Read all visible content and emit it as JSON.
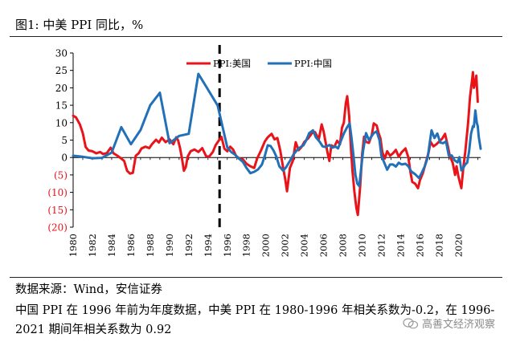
{
  "header": {
    "title": "图1:  中美 PPI 同比，%"
  },
  "footer": {
    "source": "数据来源：Wind，安信证券",
    "note_line1": "中国 PPI 在 1996 年前为年度数据，中美 PPI 在 1980-1996 年相关系数为-0.2，在 1996-",
    "note_line2": "2021 期间年相关系数为 0.92",
    "watermark": "高善文经济观察"
  },
  "colors": {
    "us": "#e8141a",
    "china": "#2270b8",
    "axis": "#000000",
    "negative_tick": "#e8141a"
  },
  "chart_data": {
    "type": "line",
    "title": "",
    "xlabel": "",
    "ylabel": "",
    "xlim": [
      1980,
      2022.3
    ],
    "ylim": [
      -20,
      30
    ],
    "y_ticks": [
      30,
      25,
      20,
      15,
      10,
      5,
      0,
      -5,
      -10,
      -15,
      -20
    ],
    "y_tick_labels": [
      "30",
      "25",
      "20",
      "15",
      "10",
      "5",
      "0",
      "(5)",
      "(10)",
      "(15)",
      "(20)"
    ],
    "x_ticks": [
      1980,
      1982,
      1984,
      1986,
      1988,
      1990,
      1992,
      1994,
      1996,
      1998,
      2000,
      2002,
      2004,
      2006,
      2008,
      2010,
      2012,
      2014,
      2016,
      2018,
      2020
    ],
    "x_tick_labels": [
      "1980",
      "1982",
      "1984",
      "1986",
      "1988",
      "1990",
      "1992",
      "1994",
      "1996",
      "1998",
      "2000",
      "2002",
      "2004",
      "2006",
      "2008",
      "2010",
      "2012",
      "2014",
      "2016",
      "2018",
      "2020"
    ],
    "vline": {
      "x": 1995.2,
      "style": "dashed"
    },
    "legend": {
      "placement": "top-center"
    },
    "series": [
      {
        "name": "PPI:美国",
        "points": [
          [
            1980.0,
            12
          ],
          [
            1980.3,
            11.5
          ],
          [
            1980.7,
            9.5
          ],
          [
            1981.0,
            7
          ],
          [
            1981.3,
            3
          ],
          [
            1981.6,
            2
          ],
          [
            1982.0,
            1.8
          ],
          [
            1982.4,
            1.2
          ],
          [
            1982.8,
            1.6
          ],
          [
            1983.1,
            1
          ],
          [
            1983.5,
            1.3
          ],
          [
            1983.9,
            2.8
          ],
          [
            1984.2,
            1.2
          ],
          [
            1984.6,
            0.5
          ],
          [
            1985.0,
            -0.3
          ],
          [
            1985.3,
            -1
          ],
          [
            1985.6,
            -3.8
          ],
          [
            1985.9,
            -4.6
          ],
          [
            1986.2,
            -4.4
          ],
          [
            1986.5,
            0.5
          ],
          [
            1986.8,
            1.2
          ],
          [
            1987.1,
            2.6
          ],
          [
            1987.5,
            3.1
          ],
          [
            1987.9,
            2.7
          ],
          [
            1988.2,
            3.9
          ],
          [
            1988.6,
            5.1
          ],
          [
            1988.9,
            4.3
          ],
          [
            1989.2,
            5.7
          ],
          [
            1989.6,
            4.4
          ],
          [
            1990.0,
            5.2
          ],
          [
            1990.4,
            3.8
          ],
          [
            1990.7,
            5.8
          ],
          [
            1990.9,
            4.9
          ],
          [
            1991.1,
            2.7
          ],
          [
            1991.3,
            -0.3
          ],
          [
            1991.5,
            -3.8
          ],
          [
            1991.7,
            -2.7
          ],
          [
            1991.9,
            0.3
          ],
          [
            1992.2,
            1.8
          ],
          [
            1992.6,
            2.3
          ],
          [
            1993.0,
            1.6
          ],
          [
            1993.4,
            2.7
          ],
          [
            1993.8,
            0.4
          ],
          [
            1994.1,
            0.2
          ],
          [
            1994.5,
            1.6
          ],
          [
            1994.8,
            3.6
          ],
          [
            1995.1,
            4.8
          ],
          [
            1995.4,
            5.9
          ],
          [
            1995.7,
            2.5
          ],
          [
            1996.0,
            1.8
          ],
          [
            1996.3,
            3.1
          ],
          [
            1996.6,
            2.3
          ],
          [
            1996.9,
            0.5
          ],
          [
            1997.2,
            -0.2
          ],
          [
            1997.6,
            -0.5
          ],
          [
            1998.0,
            -1.8
          ],
          [
            1998.4,
            -2.5
          ],
          [
            1998.8,
            -3
          ],
          [
            1999.1,
            -0.3
          ],
          [
            1999.5,
            2
          ],
          [
            1999.9,
            4.6
          ],
          [
            2000.2,
            5.8
          ],
          [
            2000.6,
            6.8
          ],
          [
            2000.9,
            5.2
          ],
          [
            2001.2,
            5.6
          ],
          [
            2001.5,
            2
          ],
          [
            2001.8,
            -3
          ],
          [
            2002.0,
            -6
          ],
          [
            2002.2,
            -9.7
          ],
          [
            2002.5,
            -3
          ],
          [
            2002.8,
            -1
          ],
          [
            2003.1,
            4.4
          ],
          [
            2003.4,
            2.1
          ],
          [
            2003.7,
            3
          ],
          [
            2004.0,
            4.5
          ],
          [
            2004.4,
            5.5
          ],
          [
            2004.8,
            7
          ],
          [
            2005.1,
            7.3
          ],
          [
            2005.5,
            5.2
          ],
          [
            2005.8,
            9.5
          ],
          [
            2006.0,
            7.5
          ],
          [
            2006.2,
            4.5
          ],
          [
            2006.4,
            1.5
          ],
          [
            2006.6,
            -1
          ],
          [
            2006.8,
            3.5
          ],
          [
            2007.1,
            3
          ],
          [
            2007.4,
            4.8
          ],
          [
            2007.7,
            3.8
          ],
          [
            2007.9,
            8.5
          ],
          [
            2008.1,
            10
          ],
          [
            2008.3,
            15.5
          ],
          [
            2008.45,
            17.6
          ],
          [
            2008.65,
            12
          ],
          [
            2008.85,
            2
          ],
          [
            2009.0,
            -4
          ],
          [
            2009.2,
            -10
          ],
          [
            2009.4,
            -14.5
          ],
          [
            2009.55,
            -16.5
          ],
          [
            2009.8,
            -8
          ],
          [
            2010.0,
            1
          ],
          [
            2010.2,
            6
          ],
          [
            2010.4,
            4.5
          ],
          [
            2010.7,
            4.2
          ],
          [
            2011.0,
            6.5
          ],
          [
            2011.2,
            9.8
          ],
          [
            2011.5,
            9.2
          ],
          [
            2011.7,
            7
          ],
          [
            2011.9,
            5.5
          ],
          [
            2012.1,
            1.5
          ],
          [
            2012.35,
            -0.3
          ],
          [
            2012.6,
            1.8
          ],
          [
            2012.9,
            0.5
          ],
          [
            2013.2,
            1.2
          ],
          [
            2013.5,
            2.2
          ],
          [
            2013.8,
            0.2
          ],
          [
            2014.1,
            1.5
          ],
          [
            2014.5,
            2.6
          ],
          [
            2014.8,
            0
          ],
          [
            2015.0,
            -4
          ],
          [
            2015.2,
            -7
          ],
          [
            2015.5,
            -7.5
          ],
          [
            2015.8,
            -8.8
          ],
          [
            2016.0,
            -6.5
          ],
          [
            2016.3,
            -4.5
          ],
          [
            2016.6,
            -1.5
          ],
          [
            2016.9,
            1.5
          ],
          [
            2017.1,
            4.5
          ],
          [
            2017.4,
            3.2
          ],
          [
            2017.7,
            3.8
          ],
          [
            2018.0,
            4.6
          ],
          [
            2018.3,
            5.4
          ],
          [
            2018.6,
            6.8
          ],
          [
            2018.9,
            3.2
          ],
          [
            2019.1,
            0.5
          ],
          [
            2019.4,
            -1.5
          ],
          [
            2019.65,
            -5
          ],
          [
            2019.8,
            -2.5
          ],
          [
            2020.0,
            -5.5
          ],
          [
            2020.3,
            -8.8
          ],
          [
            2020.5,
            -3
          ],
          [
            2020.7,
            1.5
          ],
          [
            2021.0,
            10
          ],
          [
            2021.2,
            17.5
          ],
          [
            2021.4,
            22
          ],
          [
            2021.5,
            24.5
          ],
          [
            2021.6,
            20
          ],
          [
            2021.75,
            21.5
          ],
          [
            2021.85,
            23.5
          ],
          [
            2022.0,
            16
          ]
        ]
      },
      {
        "name": "PPI:中国",
        "points": [
          [
            1980.0,
            0.5
          ],
          [
            1981.0,
            0.2
          ],
          [
            1982.0,
            -0.2
          ],
          [
            1983.0,
            -0.1
          ],
          [
            1984.0,
            1.4
          ],
          [
            1985.0,
            8.7
          ],
          [
            1986.0,
            3.8
          ],
          [
            1987.0,
            7.9
          ],
          [
            1988.0,
            15.0
          ],
          [
            1989.0,
            18.6
          ],
          [
            1990.0,
            4.1
          ],
          [
            1991.0,
            6.2
          ],
          [
            1992.0,
            6.8
          ],
          [
            1993.0,
            24.0
          ],
          [
            1994.0,
            19.5
          ],
          [
            1995.0,
            14.9
          ],
          [
            1996.0,
            2.9
          ],
          [
            1996.4,
            1.6
          ],
          [
            1996.8,
            0.8
          ],
          [
            1997.2,
            -0.3
          ],
          [
            1997.6,
            -1.2
          ],
          [
            1998.0,
            -3
          ],
          [
            1998.4,
            -4.5
          ],
          [
            1998.8,
            -4.1
          ],
          [
            1999.2,
            -3.4
          ],
          [
            1999.6,
            -2
          ],
          [
            1999.9,
            0.5
          ],
          [
            2000.2,
            3.5
          ],
          [
            2000.5,
            3.3
          ],
          [
            2000.8,
            2
          ],
          [
            2001.1,
            0.2
          ],
          [
            2001.4,
            -2.5
          ],
          [
            2001.8,
            -3.8
          ],
          [
            2002.1,
            -2.8
          ],
          [
            2002.5,
            -1
          ],
          [
            2002.9,
            1
          ],
          [
            2003.2,
            2
          ],
          [
            2003.5,
            2.8
          ],
          [
            2003.9,
            3.5
          ],
          [
            2004.2,
            5
          ],
          [
            2004.5,
            7
          ],
          [
            2004.9,
            7.8
          ],
          [
            2005.2,
            5.8
          ],
          [
            2005.6,
            4.5
          ],
          [
            2005.9,
            3.2
          ],
          [
            2006.2,
            3
          ],
          [
            2006.6,
            3.6
          ],
          [
            2006.9,
            2.8
          ],
          [
            2007.2,
            3.2
          ],
          [
            2007.5,
            2.6
          ],
          [
            2007.8,
            4.8
          ],
          [
            2008.1,
            6.9
          ],
          [
            2008.4,
            8.5
          ],
          [
            2008.7,
            9.8
          ],
          [
            2008.9,
            5.5
          ],
          [
            2009.1,
            0.5
          ],
          [
            2009.3,
            -5
          ],
          [
            2009.5,
            -7.5
          ],
          [
            2009.7,
            -8.2
          ],
          [
            2009.9,
            -3
          ],
          [
            2010.1,
            2
          ],
          [
            2010.4,
            7
          ],
          [
            2010.7,
            5
          ],
          [
            2010.9,
            5.8
          ],
          [
            2011.2,
            7
          ],
          [
            2011.5,
            7.5
          ],
          [
            2011.8,
            5
          ],
          [
            2012.0,
            0.5
          ],
          [
            2012.3,
            -1.5
          ],
          [
            2012.6,
            -3.5
          ],
          [
            2012.9,
            -2
          ],
          [
            2013.2,
            -2
          ],
          [
            2013.5,
            -2.6
          ],
          [
            2013.8,
            -1.5
          ],
          [
            2014.1,
            -2
          ],
          [
            2014.5,
            -1.8
          ],
          [
            2014.8,
            -2.5
          ],
          [
            2015.1,
            -4
          ],
          [
            2015.5,
            -4.8
          ],
          [
            2015.9,
            -5.9
          ],
          [
            2016.2,
            -4.3
          ],
          [
            2016.5,
            -2.5
          ],
          [
            2016.8,
            0
          ],
          [
            2017.0,
            4
          ],
          [
            2017.2,
            7.8
          ],
          [
            2017.5,
            5.6
          ],
          [
            2017.8,
            6.9
          ],
          [
            2018.1,
            4.3
          ],
          [
            2018.4,
            4.1
          ],
          [
            2018.7,
            4.6
          ],
          [
            2019.0,
            0.5
          ],
          [
            2019.3,
            0.6
          ],
          [
            2019.6,
            -0.8
          ],
          [
            2019.9,
            -1.4
          ],
          [
            2020.1,
            0.1
          ],
          [
            2020.3,
            -3.7
          ],
          [
            2020.5,
            -3
          ],
          [
            2020.7,
            -2
          ],
          [
            2020.9,
            -1.5
          ],
          [
            2021.1,
            1.7
          ],
          [
            2021.3,
            6.8
          ],
          [
            2021.5,
            9
          ],
          [
            2021.6,
            8.8
          ],
          [
            2021.75,
            13.5
          ],
          [
            2021.9,
            10
          ],
          [
            2022.0,
            9
          ],
          [
            2022.1,
            6
          ],
          [
            2022.3,
            2.5
          ]
        ]
      }
    ]
  }
}
